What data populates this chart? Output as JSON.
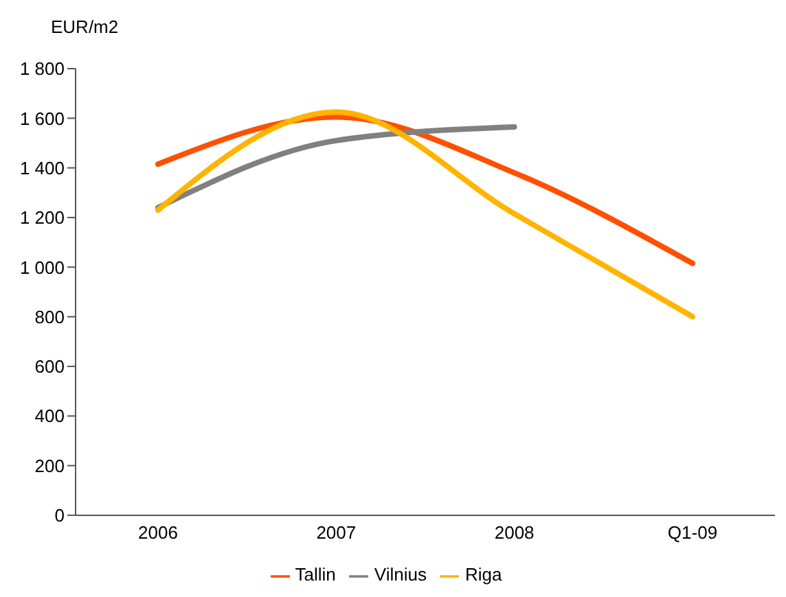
{
  "chart_data": {
    "type": "line",
    "ylabel": "EUR/m2",
    "categories": [
      "2006",
      "2007",
      "2008",
      "Q1-09"
    ],
    "series": [
      {
        "name": "Tallin",
        "color": "#ff5000",
        "values": [
          1415,
          1605,
          1380,
          1015
        ]
      },
      {
        "name": "Vilnius",
        "color": "#808080",
        "values": [
          1240,
          1510,
          1565,
          null
        ]
      },
      {
        "name": "Riga",
        "color": "#ffb400",
        "values": [
          1230,
          1625,
          1215,
          800
        ]
      }
    ],
    "ylim": [
      0,
      1800
    ],
    "yticks": [
      0,
      200,
      400,
      600,
      800,
      1000,
      1200,
      1400,
      1600,
      1800
    ],
    "grid": false,
    "legend": "bottom",
    "marker": "none",
    "line_style": "solid"
  }
}
